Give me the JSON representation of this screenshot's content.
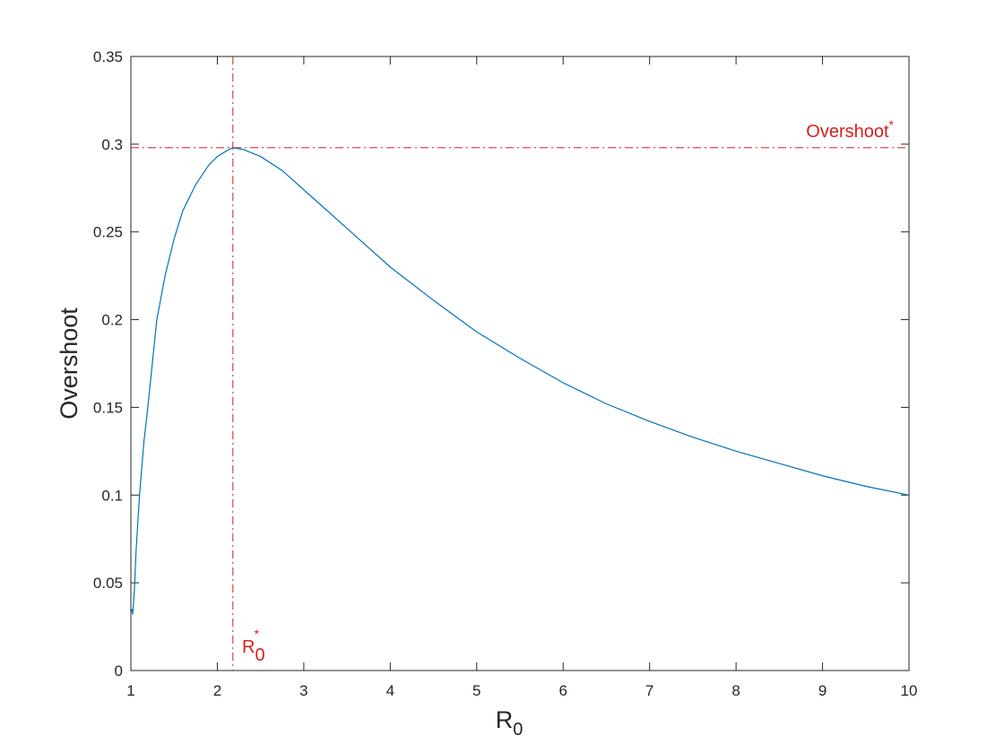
{
  "chart_data": {
    "type": "line",
    "xlabel": {
      "text": "R",
      "sub": "0"
    },
    "ylabel": "Overshoot",
    "xlim": [
      1,
      10
    ],
    "ylim": [
      0,
      0.35
    ],
    "xticks": [
      1,
      2,
      3,
      4,
      5,
      6,
      7,
      8,
      9,
      10
    ],
    "yticks": [
      0,
      0.05,
      0.1,
      0.15,
      0.2,
      0.25,
      0.3,
      0.35
    ],
    "series": [
      {
        "color": "#0072bd",
        "x": [
          1.01,
          1.02,
          1.04,
          1.06,
          1.1,
          1.15,
          1.2,
          1.3,
          1.4,
          1.5,
          1.6,
          1.75,
          1.9,
          2,
          2.1,
          2.18,
          2.3,
          2.5,
          2.75,
          3,
          3.5,
          4,
          4.5,
          5,
          5.5,
          6,
          6.5,
          7,
          7.5,
          8,
          8.5,
          9,
          9.5,
          10
        ],
        "values": [
          0.035,
          0.032,
          0.045,
          0.068,
          0.1,
          0.13,
          0.152,
          0.2,
          0.226,
          0.246,
          0.262,
          0.277,
          0.288,
          0.293,
          0.296,
          0.298,
          0.297,
          0.293,
          0.285,
          0.274,
          0.252,
          0.23,
          0.211,
          0.193,
          0.178,
          0.164,
          0.152,
          0.142,
          0.133,
          0.125,
          0.118,
          0.111,
          0.105,
          0.1
        ]
      }
    ],
    "reference_lines": {
      "color": "#d81e1e",
      "x": 2.18,
      "y": 0.298
    },
    "annotations": [
      {
        "text": "Overshoot",
        "sup": "*"
      },
      {
        "text": "R",
        "sub": "0",
        "sup": "*"
      }
    ]
  }
}
